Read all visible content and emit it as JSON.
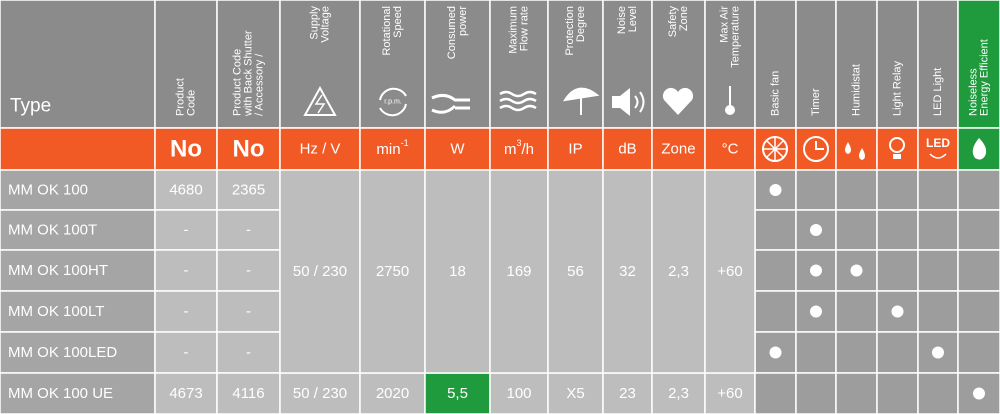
{
  "header": {
    "type": "Type",
    "columns": [
      [
        "Product",
        "Code"
      ],
      [
        "Product Code",
        "with Back Shutter",
        "/ Accessory /"
      ],
      [
        "Supply",
        "Voltage"
      ],
      [
        "Rotational",
        "Speed"
      ],
      [
        "Consumed",
        "power"
      ],
      [
        "Maximum",
        "Flow rate"
      ],
      [
        "Protection",
        "Degree"
      ],
      [
        "Noise",
        "Level"
      ],
      [
        "Safety",
        "Zone"
      ],
      [
        "Max Air",
        "Temperature"
      ],
      [
        "Basic fan"
      ],
      [
        "Timer"
      ],
      [
        "Humidistat"
      ],
      [
        "Light Relay"
      ],
      [
        "LED Light"
      ],
      [
        "Noiseless",
        "Energy Efficient"
      ]
    ],
    "rpm": "r.p.m."
  },
  "units": [
    "No",
    "No",
    "Hz / V",
    {
      "base": "min",
      "sup": "-1"
    },
    "W",
    {
      "base": "m",
      "sup": "3",
      "rest": "/h"
    },
    "IP",
    "dB",
    "Zone",
    "°C"
  ],
  "led": "LED",
  "rows": [
    {
      "cells": [
        "MM OK 100",
        "4680",
        "2365"
      ],
      "features": [
        true,
        false,
        false,
        false,
        false,
        false
      ]
    },
    {
      "cells": [
        "MM OK 100T",
        "-",
        "-"
      ],
      "features": [
        false,
        true,
        false,
        false,
        false,
        false
      ]
    },
    {
      "cells": [
        "MM OK 100HT",
        "-",
        "-"
      ],
      "features": [
        false,
        true,
        true,
        false,
        false,
        false
      ]
    },
    {
      "cells": [
        "MM OK 100LT",
        "-",
        "-"
      ],
      "features": [
        false,
        true,
        false,
        true,
        false,
        false
      ]
    },
    {
      "cells": [
        "MM OK 100LED",
        "-",
        "-"
      ],
      "features": [
        true,
        false,
        false,
        false,
        true,
        false
      ]
    },
    {
      "cells": [
        "MM OK 100 UE",
        "4673",
        "4116",
        "50 / 230",
        "2020",
        "5,5",
        "100",
        "X5",
        "23",
        "2,3",
        "+60"
      ],
      "features": [
        false,
        false,
        false,
        false,
        false,
        true
      ],
      "highlight": 5,
      "highlight_color": "#1f9a3d"
    }
  ],
  "shared_cells": [
    "50 / 230",
    "2750",
    "18",
    "169",
    "56",
    "32",
    "2,3",
    "+60"
  ]
}
